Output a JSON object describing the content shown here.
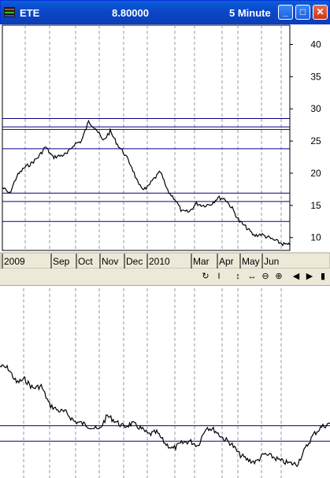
{
  "window": {
    "symbol": "ETE",
    "price": "8.80000",
    "interval": "5 Minute",
    "buttons": {
      "minimize": "_",
      "maximize": "□",
      "close": "✕"
    }
  },
  "colors": {
    "titlebar": "#0b47c9",
    "levels": "#00008b",
    "grid": "#999999",
    "price_line": "#000000"
  },
  "toolbar_icons": [
    "cycle-icon",
    "cursor-icon",
    "vertical-scale-icon",
    "horizontal-scale-icon",
    "zoom-out-icon",
    "zoom-in-icon",
    "scroll-left-icon",
    "scroll-right-icon",
    "end-icon"
  ],
  "chart_data": [
    {
      "type": "line",
      "title": "",
      "xlabel": "",
      "ylabel": "",
      "y_ticks": [
        10,
        15,
        20,
        25,
        30,
        35,
        40
      ],
      "ylim": [
        8,
        43
      ],
      "x_labels": [
        "2009",
        "Sep",
        "Oct",
        "Nov",
        "Dec",
        "2010",
        "Mar",
        "Apr",
        "May",
        "Jun"
      ],
      "grid": true,
      "horizontal_levels": [
        28.5,
        27.2,
        26.8,
        23.8,
        16.9,
        15.6,
        12.5
      ],
      "series": [
        {
          "values": [
            17.8,
            16.8,
            19.5,
            20.8,
            21.5,
            22.5,
            24.1,
            22.5,
            22.7,
            23.0,
            24.5,
            25.0,
            28.0,
            27.0,
            25.0,
            26.5,
            24.5,
            23.0,
            21.0,
            18.0,
            17.5,
            19.0,
            20.2,
            17.2,
            16.0,
            14.0,
            14.0,
            15.3,
            15.0,
            15.2,
            16.2,
            16.0,
            14.5,
            12.5,
            11.5,
            10.3,
            10.5,
            10.0,
            9.5,
            9.0,
            8.8
          ]
        }
      ]
    },
    {
      "type": "line",
      "title": "",
      "xlabel": "",
      "ylabel": "",
      "series": [
        {
          "values": [
            0.9,
            0.88,
            0.75,
            0.78,
            0.7,
            0.72,
            0.55,
            0.5,
            0.48,
            0.4,
            0.38,
            0.35,
            0.32,
            0.45,
            0.4,
            0.35,
            0.38,
            0.34,
            0.28,
            0.3,
            0.2,
            0.15,
            0.2,
            0.22,
            0.18,
            0.35,
            0.32,
            0.25,
            0.2,
            0.1,
            0.05,
            0.03,
            0.1,
            0.08,
            0.04,
            0.02,
            0.01,
            0.15,
            0.28,
            0.35,
            0.38
          ]
        }
      ],
      "horizontal_levels": [
        0.36,
        0.22
      ]
    }
  ]
}
